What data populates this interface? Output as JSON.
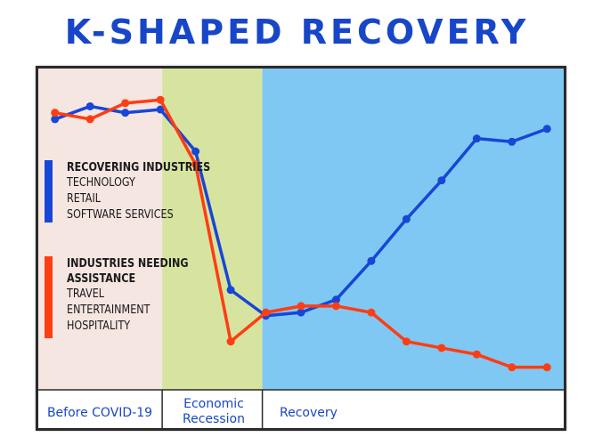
{
  "chart_data": {
    "type": "line",
    "title": "K-SHAPED RECOVERY",
    "ylim": [
      0,
      100
    ],
    "grid": false,
    "legend_position": "left",
    "x": [
      1,
      2,
      3,
      4,
      5,
      6,
      7,
      8,
      9,
      10,
      11,
      12,
      13,
      14,
      15
    ],
    "phases": [
      {
        "label": "Before COVID-19",
        "x_range": [
          0.5,
          4.05
        ],
        "color": "#f6e6e2"
      },
      {
        "label": "Economic Recession",
        "x_range": [
          4.05,
          6.9
        ],
        "color": "#d6e4a0"
      },
      {
        "label": "Recovery",
        "x_range": [
          6.9,
          15.5
        ],
        "color": "#7fc8f4"
      }
    ],
    "series": [
      {
        "name": "RECOVERING INDUSTRIES",
        "color": "#1846d6",
        "items": [
          "TECHNOLOGY",
          "RETAIL",
          "SOFTWARE SERVICES"
        ],
        "values": [
          84,
          88,
          86,
          87,
          74,
          31,
          23,
          24,
          28,
          40,
          53,
          65,
          78,
          77,
          81
        ]
      },
      {
        "name": "INDUSTRIES NEEDING ASSISTANCE",
        "color": "#ff3d12",
        "items": [
          "TRAVEL",
          "ENTERTAINMENT",
          "HOSPITALITY"
        ],
        "values": [
          86,
          84,
          89,
          90,
          70,
          15,
          24,
          26,
          26,
          24,
          15,
          13,
          11,
          7,
          7
        ]
      }
    ]
  }
}
